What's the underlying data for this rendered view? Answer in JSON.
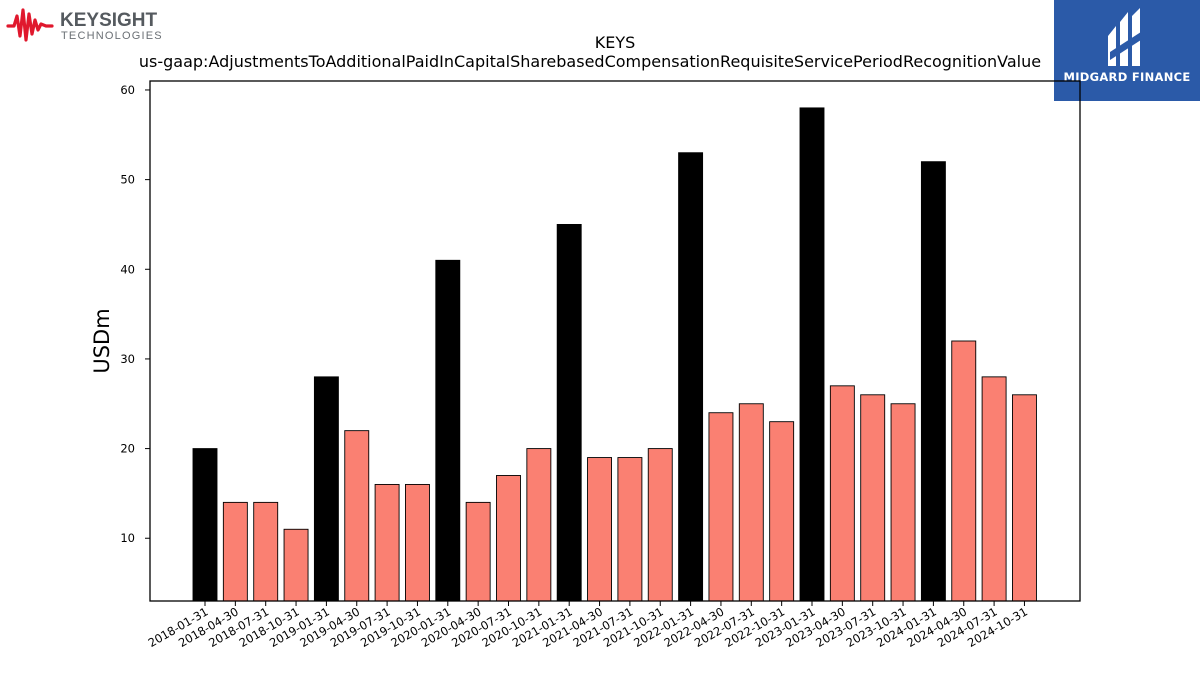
{
  "logos": {
    "left": {
      "name": "KEYSIGHT",
      "sub": "TECHNOLOGIES"
    },
    "right": {
      "name": "MIDGARD FINANCE"
    }
  },
  "chart_data": {
    "type": "bar",
    "title": "KEYS",
    "subtitle": "us-gaap:AdjustmentsToAdditionalPaidInCapitalSharebasedCompensationRequisiteServicePeriodRecognitionValue",
    "xlabel": "",
    "ylabel": "USDm",
    "ylim": [
      3,
      61
    ],
    "yticks": [
      10,
      20,
      30,
      40,
      50,
      60
    ],
    "grid": false,
    "categories": [
      "2018-01-31",
      "2018-04-30",
      "2018-07-31",
      "2018-10-31",
      "2019-01-31",
      "2019-04-30",
      "2019-07-31",
      "2019-10-31",
      "2020-01-31",
      "2020-04-30",
      "2020-07-31",
      "2020-10-31",
      "2021-01-31",
      "2021-04-30",
      "2021-07-31",
      "2021-10-31",
      "2022-01-31",
      "2022-04-30",
      "2022-07-31",
      "2022-10-31",
      "2023-01-31",
      "2023-04-30",
      "2023-07-31",
      "2023-10-31",
      "2024-01-31",
      "2024-04-30",
      "2024-07-31",
      "2024-10-31"
    ],
    "values": [
      20,
      14,
      14,
      11,
      28,
      22,
      16,
      16,
      41,
      14,
      17,
      20,
      45,
      19,
      19,
      20,
      53,
      24,
      25,
      23,
      58,
      27,
      26,
      25,
      52,
      32,
      28,
      26
    ],
    "highlight": [
      true,
      false,
      false,
      false,
      true,
      false,
      false,
      false,
      true,
      false,
      false,
      false,
      true,
      false,
      false,
      false,
      true,
      false,
      false,
      false,
      true,
      false,
      false,
      false,
      true,
      false,
      false,
      false
    ],
    "colors": {
      "highlight": "#000000",
      "normal": "#fa8072",
      "edge": "#000000"
    }
  }
}
